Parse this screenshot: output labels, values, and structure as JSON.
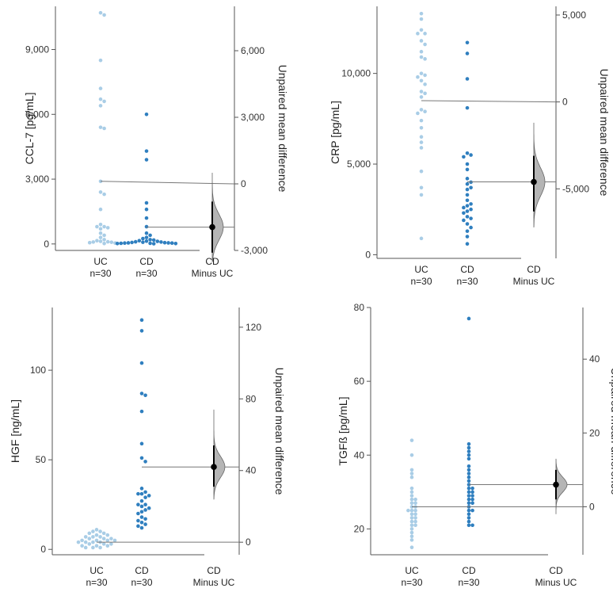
{
  "chart_data": [
    {
      "type": "scatter",
      "panel": "top-left",
      "ylabel": "CCL-7 [pg/mL]",
      "ylabel_right": "Unpaired mean difference",
      "ylim": [
        -300,
        11000
      ],
      "yticks": [
        0,
        3000,
        6000,
        9000
      ],
      "ytick_labels": [
        "0",
        "3,000",
        "6,000",
        "9,000"
      ],
      "diff_ylim": [
        -3000,
        8000
      ],
      "diff_ticks": [
        -3000,
        0,
        3000,
        6000
      ],
      "diff_tick_labels": [
        "-3,000",
        "0",
        "3,000",
        "6,000"
      ],
      "diff_reference": 2900,
      "groups": [
        {
          "label": "UC",
          "n": "n=30",
          "color": "#a9cde6",
          "values": [
            10700,
            10600,
            8500,
            7200,
            6700,
            6600,
            6400,
            5400,
            5350,
            2900,
            2400,
            2300,
            1600,
            900,
            800,
            800,
            750,
            700,
            500,
            400,
            300,
            200,
            150,
            120,
            100,
            90,
            80,
            60,
            40,
            20
          ]
        },
        {
          "label": "CD",
          "n": "n=30",
          "color": "#2f7fbf",
          "values": [
            6000,
            4300,
            3900,
            1900,
            1600,
            1200,
            800,
            500,
            400,
            300,
            250,
            200,
            180,
            150,
            130,
            120,
            100,
            90,
            80,
            70,
            60,
            50,
            50,
            40,
            40,
            30,
            30,
            20,
            20,
            10
          ]
        }
      ],
      "effect": {
        "label": "CD",
        "sublabel": "Minus UC",
        "mean_diff": -1950,
        "ci": [
          -3100,
          -800
        ],
        "dist_range": [
          -3500,
          500
        ]
      }
    },
    {
      "type": "scatter",
      "panel": "top-right",
      "ylabel": "CRP [pg/mL]",
      "ylabel_right": "Unpaired mean difference",
      "ylim": [
        -200,
        13700
      ],
      "yticks": [
        0,
        5000,
        10000
      ],
      "ytick_labels": [
        "0",
        "5,000",
        "10,000"
      ],
      "diff_ylim": [
        -9000,
        5500
      ],
      "diff_ticks": [
        -5000,
        0,
        5000
      ],
      "diff_tick_labels": [
        "-5,000",
        "0",
        "5,000"
      ],
      "diff_reference": 8500,
      "groups": [
        {
          "label": "UC",
          "n": "n=30",
          "color": "#a9cde6",
          "values": [
            13300,
            13000,
            12400,
            12200,
            12200,
            11800,
            11600,
            11200,
            10900,
            10800,
            10000,
            9900,
            9800,
            9600,
            9400,
            9000,
            8900,
            8700,
            8000,
            7900,
            7800,
            7400,
            7000,
            6500,
            6200,
            5900,
            4600,
            3700,
            3300,
            900
          ]
        },
        {
          "label": "CD",
          "n": "n=30",
          "color": "#2f7fbf",
          "values": [
            11700,
            11100,
            9700,
            8100,
            5600,
            5500,
            5400,
            5000,
            4700,
            4200,
            4000,
            3900,
            3700,
            3600,
            3300,
            3000,
            2800,
            2700,
            2600,
            2500,
            2400,
            2300,
            2100,
            2000,
            1900,
            1700,
            1500,
            1300,
            1000,
            600
          ]
        },
        {
          "label": "",
          "n": "",
          "color": "#a9cde6",
          "values": []
        }
      ],
      "effect": {
        "label": "CD",
        "sublabel": "Minus UC",
        "mean_diff": -4600,
        "ci": [
          -6300,
          -3100
        ],
        "dist_range": [
          -7200,
          -1200
        ]
      }
    },
    {
      "type": "scatter",
      "panel": "bottom-left",
      "ylabel": "HGF [ng/mL]",
      "ylabel_right": "Unpaired mean difference",
      "ylim": [
        -3,
        135
      ],
      "yticks": [
        0,
        50,
        100
      ],
      "ytick_labels": [
        "0",
        "50",
        "100"
      ],
      "diff_ylim": [
        -7,
        131
      ],
      "diff_ticks": [
        0,
        40,
        80,
        120
      ],
      "diff_tick_labels": [
        "0",
        "40",
        "80",
        "120"
      ],
      "diff_reference": 4,
      "groups": [
        {
          "label": "UC",
          "n": "n=30",
          "color": "#a9cde6",
          "values": [
            11,
            10,
            10,
            9,
            9,
            8,
            8,
            7,
            7,
            7,
            6,
            6,
            6,
            5,
            5,
            5,
            5,
            4,
            4,
            4,
            4,
            3,
            3,
            3,
            2,
            2,
            2,
            1,
            1,
            1
          ]
        },
        {
          "label": "CD",
          "n": "n=30",
          "color": "#2f7fbf",
          "values": [
            128,
            122,
            104,
            87,
            86,
            77,
            59,
            51,
            49,
            34,
            32,
            31,
            31,
            30,
            29,
            27,
            25,
            25,
            24,
            23,
            22,
            21,
            20,
            18,
            17,
            16,
            15,
            14,
            13,
            12
          ]
        }
      ],
      "effect": {
        "label": "CD",
        "sublabel": "Minus UC",
        "mean_diff": 42,
        "ci": [
          31,
          54
        ],
        "dist_range": [
          24,
          74
        ]
      }
    },
    {
      "type": "scatter",
      "panel": "bottom-right",
      "ylabel": "TGFß [pg/mL]",
      "ylabel_right": "Unpaired mean difference",
      "ylim": [
        13,
        80
      ],
      "yticks": [
        20,
        40,
        60,
        80
      ],
      "ytick_labels": [
        "20",
        "40",
        "60",
        "80"
      ],
      "diff_ylim": [
        -13,
        54
      ],
      "diff_ticks": [
        0,
        20,
        40
      ],
      "diff_tick_labels": [
        "0",
        "20",
        "40"
      ],
      "diff_reference": 26,
      "groups": [
        {
          "label": "UC",
          "n": "n=30",
          "color": "#a9cde6",
          "values": [
            44,
            40,
            36,
            35,
            34,
            31,
            30,
            29,
            28,
            28,
            27,
            27,
            26,
            26,
            25,
            25,
            25,
            24,
            24,
            23,
            23,
            22,
            22,
            21,
            21,
            20,
            19,
            18,
            17,
            15
          ]
        },
        {
          "label": "CD",
          "n": "n=30",
          "color": "#2f7fbf",
          "values": [
            77,
            43,
            42,
            41,
            40,
            39,
            37,
            36,
            35,
            34,
            33,
            32,
            31,
            31,
            30,
            30,
            29,
            29,
            28,
            28,
            27,
            27,
            26,
            25,
            25,
            24,
            23,
            22,
            21,
            21
          ]
        }
      ],
      "effect": {
        "label": "CD",
        "sublabel": "Minus UC",
        "mean_diff": 6,
        "ci": [
          2,
          10
        ],
        "dist_range": [
          -2,
          13
        ]
      }
    }
  ]
}
